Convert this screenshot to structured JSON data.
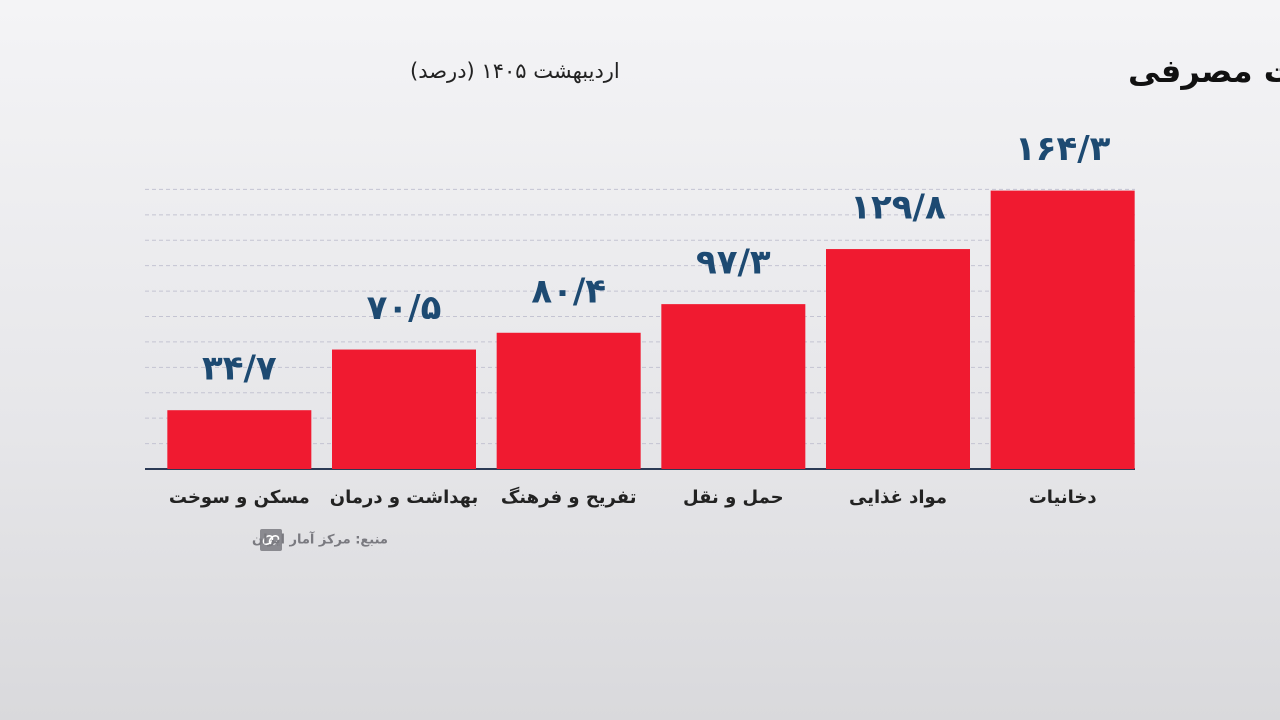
{
  "chart_data": {
    "type": "bar",
    "title": "تورم نقطه به نقطه کالاها و خدمات مصرفی",
    "subtitle": "اردیبهشت ۱۴۰۵ (درصد)",
    "source": "منبع: مرکز آمار ایران",
    "categories": [
      "مسکن و سوخت",
      "بهداشت و درمان",
      "تفریح و فرهنگ",
      "حمل و نقل",
      "مواد غذایی",
      "دخانیات"
    ],
    "values": [
      34.7,
      70.5,
      80.4,
      97.3,
      129.8,
      164.3
    ],
    "value_labels": [
      "۳۴/۷",
      "۷۰/۵",
      "۸۰/۴",
      "۹۷/۳",
      "۱۲۹/۸",
      "۱۶۴/۳"
    ],
    "color": "#f01a30",
    "ylim": [
      0,
      180
    ],
    "yticks": [
      0,
      15,
      30,
      45,
      60,
      75,
      90,
      105,
      120,
      135,
      150,
      165
    ],
    "grid": true
  }
}
